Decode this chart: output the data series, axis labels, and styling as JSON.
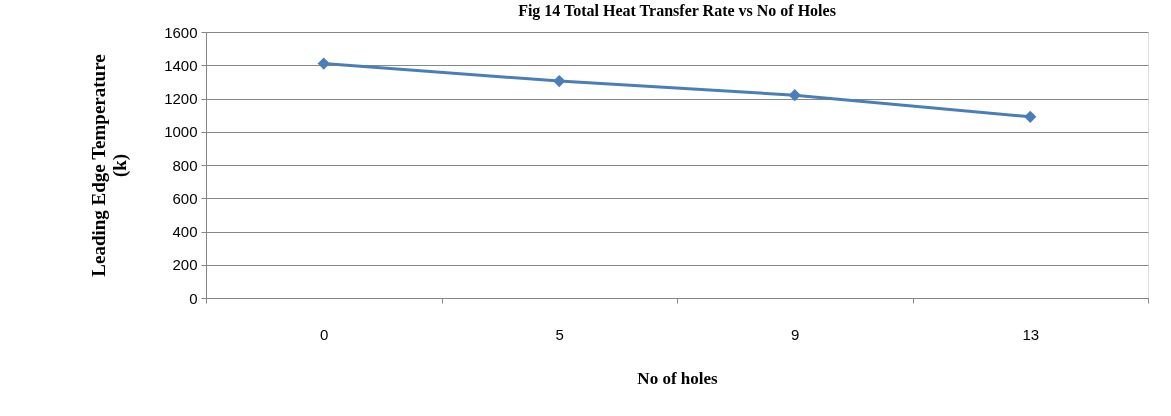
{
  "chart_data": {
    "type": "line",
    "title": "Fig 14 Total Heat Transfer Rate vs No of Holes",
    "xlabel": "No of holes",
    "ylabel": "Leading Edge Temperature (k)",
    "categories": [
      "0",
      "5",
      "9",
      "13"
    ],
    "series": [
      {
        "color": "#4a7ebb",
        "values": [
          1410,
          1305,
          1220,
          1090
        ]
      }
    ],
    "ylim": [
      0,
      1600
    ],
    "yticks": [
      0,
      200,
      400,
      600,
      800,
      1000,
      1200,
      1400,
      1600
    ],
    "grid": "y",
    "marker": "diamond",
    "line_style": "solid"
  }
}
